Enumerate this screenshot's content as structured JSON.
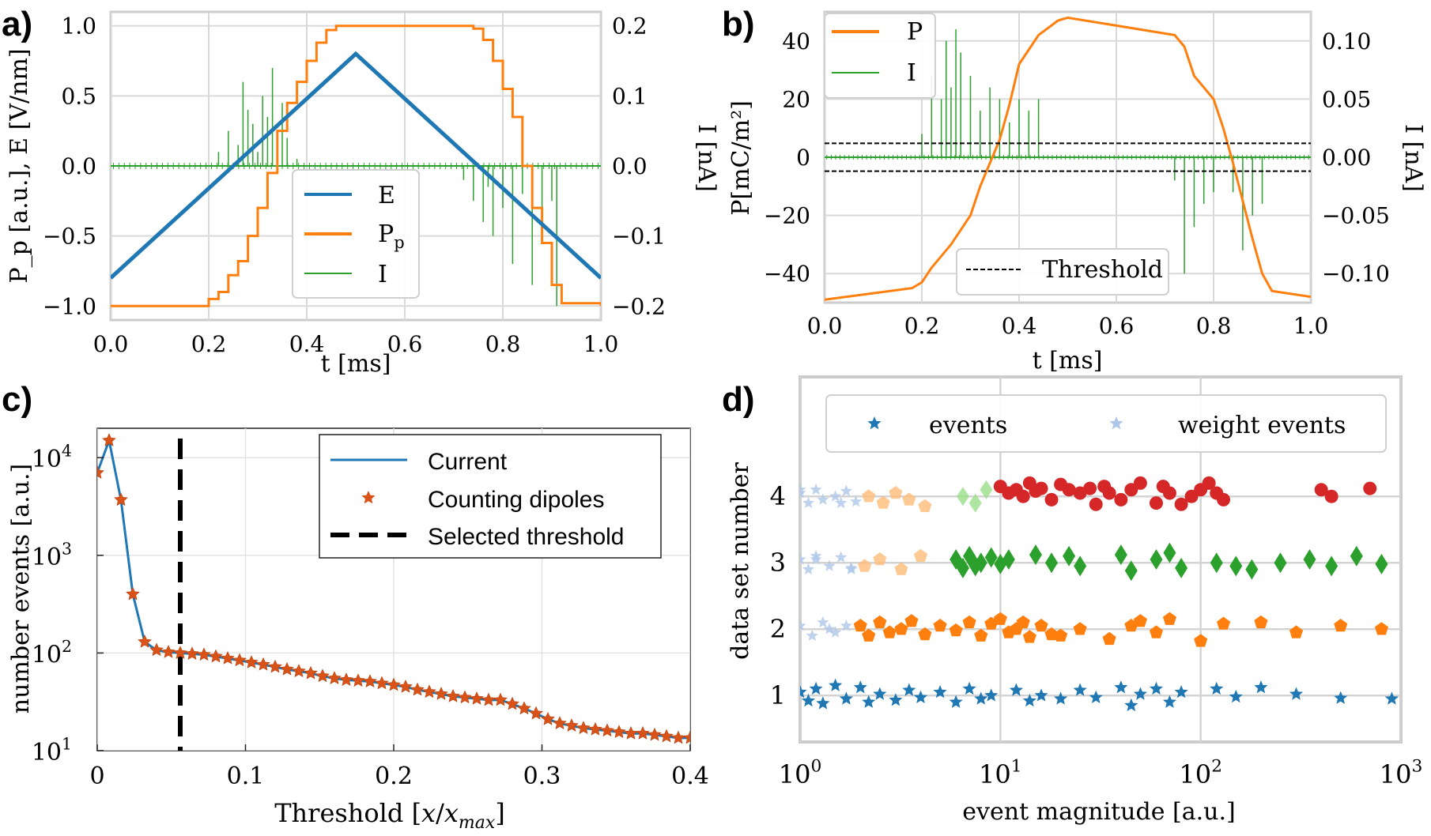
{
  "panel_labels": [
    "a)",
    "b)",
    "c)",
    "d)"
  ],
  "chart_data": [
    {
      "type": "line",
      "panel": "a)",
      "xlabel": "t [ms]",
      "ylabel": "P_p [a.u.], E [V/nm]",
      "y2label": "I [nA]",
      "xlim": [
        0,
        1.0
      ],
      "ylim": [
        -1.1,
        1.1
      ],
      "y2lim": [
        -0.22,
        0.22
      ],
      "xticks": [
        "0.0",
        "0.2",
        "0.4",
        "0.6",
        "0.8",
        "1.0"
      ],
      "yticks": [
        "−1.0",
        "−0.5",
        "0.0",
        "0.5",
        "1.0"
      ],
      "y2ticks": [
        "−0.2",
        "−0.1",
        "0.0",
        "0.1",
        "0.2"
      ],
      "grid": true,
      "legend_position": "lower-center",
      "series": [
        {
          "name": "E",
          "color": "#1f77b4",
          "x": [
            0.0,
            0.5,
            1.0
          ],
          "y": [
            -0.8,
            0.8,
            -0.8
          ]
        },
        {
          "name": "P",
          "name_sub": "p",
          "color": "#ff7f0e",
          "x": [
            0.0,
            0.19,
            0.2,
            0.22,
            0.24,
            0.26,
            0.28,
            0.3,
            0.32,
            0.34,
            0.36,
            0.38,
            0.4,
            0.42,
            0.44,
            0.46,
            0.7,
            0.74,
            0.76,
            0.78,
            0.8,
            0.82,
            0.84,
            0.86,
            0.88,
            0.9,
            0.92,
            1.0
          ],
          "y": [
            -1.0,
            -1.0,
            -0.95,
            -0.9,
            -0.78,
            -0.68,
            -0.5,
            -0.3,
            -0.05,
            0.25,
            0.45,
            0.6,
            0.75,
            0.88,
            0.97,
            1.0,
            1.0,
            0.98,
            0.9,
            0.75,
            0.55,
            0.35,
            0.0,
            -0.3,
            -0.55,
            -0.85,
            -0.98,
            -1.0
          ]
        },
        {
          "name": "I",
          "color": "#2ca02c",
          "x": [
            0.22,
            0.24,
            0.26,
            0.27,
            0.28,
            0.29,
            0.3,
            0.31,
            0.32,
            0.33,
            0.34,
            0.35,
            0.36,
            0.38,
            0.72,
            0.74,
            0.76,
            0.77,
            0.78,
            0.8,
            0.82,
            0.84,
            0.86,
            0.88,
            0.9,
            0.91
          ],
          "y": [
            0.02,
            0.05,
            0.03,
            0.12,
            0.08,
            0.06,
            0.02,
            0.1,
            0.07,
            0.14,
            0.05,
            0.09,
            0.04,
            0.01,
            -0.02,
            -0.05,
            -0.08,
            -0.03,
            -0.1,
            -0.06,
            -0.14,
            -0.04,
            -0.17,
            -0.09,
            -0.05,
            -0.2
          ]
        }
      ]
    },
    {
      "type": "line",
      "panel": "b)",
      "xlabel": "t [ms]",
      "ylabel": "P[mC/m²]",
      "y2label": "I [nA]",
      "xlim": [
        0,
        1.0
      ],
      "ylim": [
        -50,
        50
      ],
      "y2lim": [
        -0.125,
        0.125
      ],
      "xticks": [
        "0.0",
        "0.2",
        "0.4",
        "0.6",
        "0.8",
        "1.0"
      ],
      "yticks": [
        "−40",
        "−20",
        "0",
        "20",
        "40"
      ],
      "y2ticks": [
        "−0.10",
        "−0.05",
        "0.00",
        "0.05",
        "0.10"
      ],
      "grid": true,
      "legend_position": "top-left",
      "threshold_legend_position": "lower-center",
      "threshold": 0.012,
      "series": [
        {
          "name": "P",
          "color": "#ff7f0e",
          "x": [
            0.0,
            0.18,
            0.2,
            0.22,
            0.26,
            0.3,
            0.32,
            0.34,
            0.36,
            0.38,
            0.4,
            0.44,
            0.48,
            0.5,
            0.72,
            0.74,
            0.76,
            0.8,
            0.82,
            0.84,
            0.86,
            0.88,
            0.9,
            0.92,
            1.0
          ],
          "y": [
            -49,
            -45,
            -43,
            -38,
            -30,
            -20,
            -10,
            -2,
            6,
            18,
            32,
            42,
            47,
            48,
            42,
            38,
            28,
            20,
            10,
            -2,
            -15,
            -28,
            -40,
            -46,
            -48
          ]
        },
        {
          "name": "I",
          "color": "#2ca02c",
          "x": [
            0.2,
            0.22,
            0.24,
            0.25,
            0.26,
            0.27,
            0.28,
            0.3,
            0.32,
            0.34,
            0.36,
            0.38,
            0.4,
            0.42,
            0.44,
            0.72,
            0.74,
            0.76,
            0.78,
            0.8,
            0.84,
            0.86,
            0.88,
            0.9
          ],
          "y": [
            0.02,
            0.07,
            0.05,
            0.1,
            0.06,
            0.11,
            0.09,
            0.07,
            0.04,
            0.06,
            0.05,
            0.03,
            0.05,
            0.04,
            0.05,
            -0.02,
            -0.1,
            -0.06,
            -0.04,
            -0.03,
            -0.03,
            -0.08,
            -0.05,
            -0.04
          ]
        },
        {
          "name": "Threshold",
          "style": "dashed",
          "color": "#000000",
          "y": [
            0.012,
            -0.012
          ]
        }
      ]
    },
    {
      "type": "line",
      "panel": "c)",
      "xlabel": "Threshold [x/x_max]",
      "ylabel": "number events [a.u.]",
      "xlim": [
        0,
        0.4
      ],
      "ylim": [
        10,
        20000
      ],
      "yscale": "log",
      "xticks": [
        "0",
        "0.1",
        "0.2",
        "0.3",
        "0.4"
      ],
      "yticks": [
        10,
        100,
        1000,
        10000
      ],
      "ytick_labels": [
        "10",
        "10",
        "10",
        "10"
      ],
      "ytick_exponents": [
        "1",
        "2",
        "3",
        "4"
      ],
      "grid": true,
      "legend_position": "top-right",
      "selected_threshold": 0.056,
      "series": [
        {
          "name": "Current",
          "color": "#1f77b4",
          "marker": "none",
          "x": [
            0.0,
            0.008,
            0.016,
            0.024,
            0.032,
            0.04,
            0.048,
            0.056,
            0.064,
            0.072,
            0.08,
            0.088,
            0.096,
            0.104,
            0.112,
            0.12,
            0.128,
            0.136,
            0.144,
            0.152,
            0.16,
            0.168,
            0.176,
            0.184,
            0.192,
            0.2,
            0.208,
            0.216,
            0.224,
            0.232,
            0.24,
            0.248,
            0.256,
            0.264,
            0.272,
            0.28,
            0.288,
            0.296,
            0.304,
            0.312,
            0.32,
            0.328,
            0.336,
            0.344,
            0.352,
            0.36,
            0.368,
            0.376,
            0.384,
            0.392,
            0.4
          ],
          "y": [
            7000,
            15000,
            3700,
            400,
            130,
            107,
            102,
            100,
            98,
            96,
            92,
            88,
            84,
            80,
            76,
            72,
            68,
            65,
            62,
            58,
            55,
            53,
            52,
            51,
            49,
            47,
            45,
            42,
            40,
            38,
            36,
            35,
            34,
            33,
            33,
            30,
            27,
            24,
            21,
            19,
            18,
            17,
            16.5,
            16,
            15.5,
            15,
            15,
            14.5,
            14,
            13.5,
            13.5
          ]
        },
        {
          "name": "Counting dipoles",
          "color": "#d95319",
          "marker": "star",
          "x": [
            0.0,
            0.008,
            0.016,
            0.024,
            0.032,
            0.04,
            0.048,
            0.056,
            0.064,
            0.072,
            0.08,
            0.088,
            0.096,
            0.104,
            0.112,
            0.12,
            0.128,
            0.136,
            0.144,
            0.152,
            0.16,
            0.168,
            0.176,
            0.184,
            0.192,
            0.2,
            0.208,
            0.216,
            0.224,
            0.232,
            0.24,
            0.248,
            0.256,
            0.264,
            0.272,
            0.28,
            0.288,
            0.296,
            0.304,
            0.312,
            0.32,
            0.328,
            0.336,
            0.344,
            0.352,
            0.36,
            0.368,
            0.376,
            0.384,
            0.392,
            0.4
          ],
          "y": [
            7000,
            15000,
            3700,
            400,
            130,
            107,
            102,
            100,
            98,
            96,
            92,
            88,
            84,
            80,
            76,
            72,
            68,
            65,
            62,
            58,
            55,
            53,
            52,
            51,
            49,
            47,
            45,
            42,
            40,
            38,
            36,
            35,
            34,
            33,
            33,
            30,
            27,
            24,
            21,
            19,
            18,
            17,
            16.5,
            16,
            15.5,
            15,
            15,
            14.5,
            14,
            13.5,
            13.5
          ]
        },
        {
          "name": "Selected threshold",
          "color": "#000000",
          "style": "dashed",
          "x": [
            0.056,
            0.056
          ]
        }
      ]
    },
    {
      "type": "scatter",
      "panel": "d)",
      "xlabel": "event magnitude [a.u.]",
      "ylabel": "data set number",
      "xscale": "log",
      "xlim": [
        1,
        1000
      ],
      "ylim": [
        0.3,
        5.8
      ],
      "xtick_labels": [
        "10",
        "10",
        "10",
        "10"
      ],
      "xtick_exponents": [
        "0",
        "1",
        "2",
        "3"
      ],
      "yticks": [
        "1",
        "2",
        "3",
        "4"
      ],
      "grid": true,
      "legend_position": "top",
      "legend": [
        "events",
        "weight events"
      ],
      "series": [
        {
          "name": "data set 1",
          "set": 1,
          "color": "#1f77b4",
          "marker": "star",
          "x": [
            1.0,
            1.1,
            1.2,
            1.3,
            1.5,
            1.7,
            2.0,
            2.2,
            2.5,
            3.0,
            3.5,
            4.0,
            5.0,
            6.0,
            7.0,
            8.0,
            9.0,
            12,
            14,
            16,
            20,
            25,
            30,
            40,
            45,
            50,
            60,
            70,
            80,
            120,
            150,
            200,
            300,
            500,
            900
          ],
          "y": [
            1.05,
            0.92,
            1.1,
            0.88,
            1.15,
            0.95,
            1.12,
            0.9,
            1.02,
            0.93,
            1.08,
            0.97,
            1.05,
            0.9,
            1.1,
            0.95,
            1.0,
            1.08,
            0.92,
            1.0,
            0.95,
            1.08,
            0.97,
            1.12,
            0.85,
            1.02,
            1.1,
            0.9,
            1.05,
            1.1,
            0.98,
            1.12,
            1.02,
            0.96,
            0.95
          ]
        },
        {
          "name": "data set 2",
          "set": 2,
          "color": "#ff7f0e",
          "marker": "pentagon",
          "x": [
            2.0,
            2.2,
            2.5,
            2.8,
            3.2,
            3.6,
            4.2,
            5.0,
            6.0,
            7.0,
            8.0,
            9.0,
            10,
            11,
            12,
            13,
            14,
            16,
            18,
            20,
            25,
            35,
            45,
            50,
            60,
            70,
            100,
            130,
            200,
            300,
            500,
            800
          ],
          "y": [
            2.05,
            1.9,
            2.1,
            1.95,
            2.0,
            2.12,
            1.92,
            2.05,
            1.98,
            2.1,
            1.9,
            2.08,
            2.15,
            1.95,
            2.0,
            2.1,
            1.88,
            2.05,
            1.92,
            1.9,
            2.0,
            1.85,
            2.05,
            2.12,
            1.95,
            2.15,
            1.82,
            2.08,
            2.1,
            1.95,
            2.05,
            2.0
          ]
        },
        {
          "name": "data set 3",
          "set": 3,
          "color": "#2ca02c",
          "marker": "diamond",
          "x": [
            6.0,
            6.5,
            7.0,
            7.5,
            8.0,
            9.0,
            10,
            11,
            15,
            18,
            22,
            25,
            40,
            45,
            60,
            70,
            80,
            120,
            150,
            180,
            250,
            350,
            450,
            600,
            800
          ],
          "y": [
            3.05,
            2.92,
            3.1,
            2.95,
            3.0,
            3.08,
            2.98,
            3.05,
            3.12,
            3.0,
            3.1,
            2.95,
            3.12,
            2.88,
            3.05,
            3.15,
            2.92,
            3.0,
            2.95,
            2.9,
            3.0,
            3.05,
            2.95,
            3.1,
            2.98
          ]
        },
        {
          "name": "data set 4",
          "set": 4,
          "color": "#d62728",
          "marker": "circle",
          "x": [
            10,
            11,
            12,
            13,
            14,
            15,
            16,
            18,
            20,
            22,
            25,
            28,
            30,
            33,
            35,
            40,
            45,
            50,
            60,
            65,
            70,
            80,
            90,
            100,
            110,
            120,
            130,
            400,
            450,
            700
          ],
          "y": [
            4.15,
            4.05,
            4.1,
            4.0,
            4.2,
            4.08,
            4.12,
            3.95,
            4.18,
            4.1,
            4.05,
            4.12,
            3.88,
            4.15,
            4.05,
            3.95,
            4.1,
            4.2,
            3.9,
            4.15,
            4.05,
            3.88,
            4.0,
            4.1,
            4.2,
            4.05,
            3.95,
            4.1,
            4.0,
            4.12
          ]
        },
        {
          "name": "weight events",
          "color": "#aec7e8",
          "marker": "star",
          "x": [
            1.0,
            1.1,
            1.2,
            1.3,
            1.5,
            1.7,
            1.9,
            1.0,
            1.1,
            1.2,
            1.4,
            1.6,
            1.8,
            1.0,
            1.15,
            1.3,
            1.5,
            1.7,
            1.0,
            1.2,
            1.4,
            1.6,
            1.8
          ],
          "y": [
            4.05,
            3.9,
            4.1,
            3.95,
            4.0,
            4.08,
            3.92,
            3.05,
            2.9,
            3.1,
            2.95,
            3.08,
            2.92,
            2.05,
            1.9,
            2.1,
            1.95,
            2.05,
            4.1,
            3.05,
            2.0,
            3.9,
            2.9
          ]
        }
      ]
    }
  ]
}
